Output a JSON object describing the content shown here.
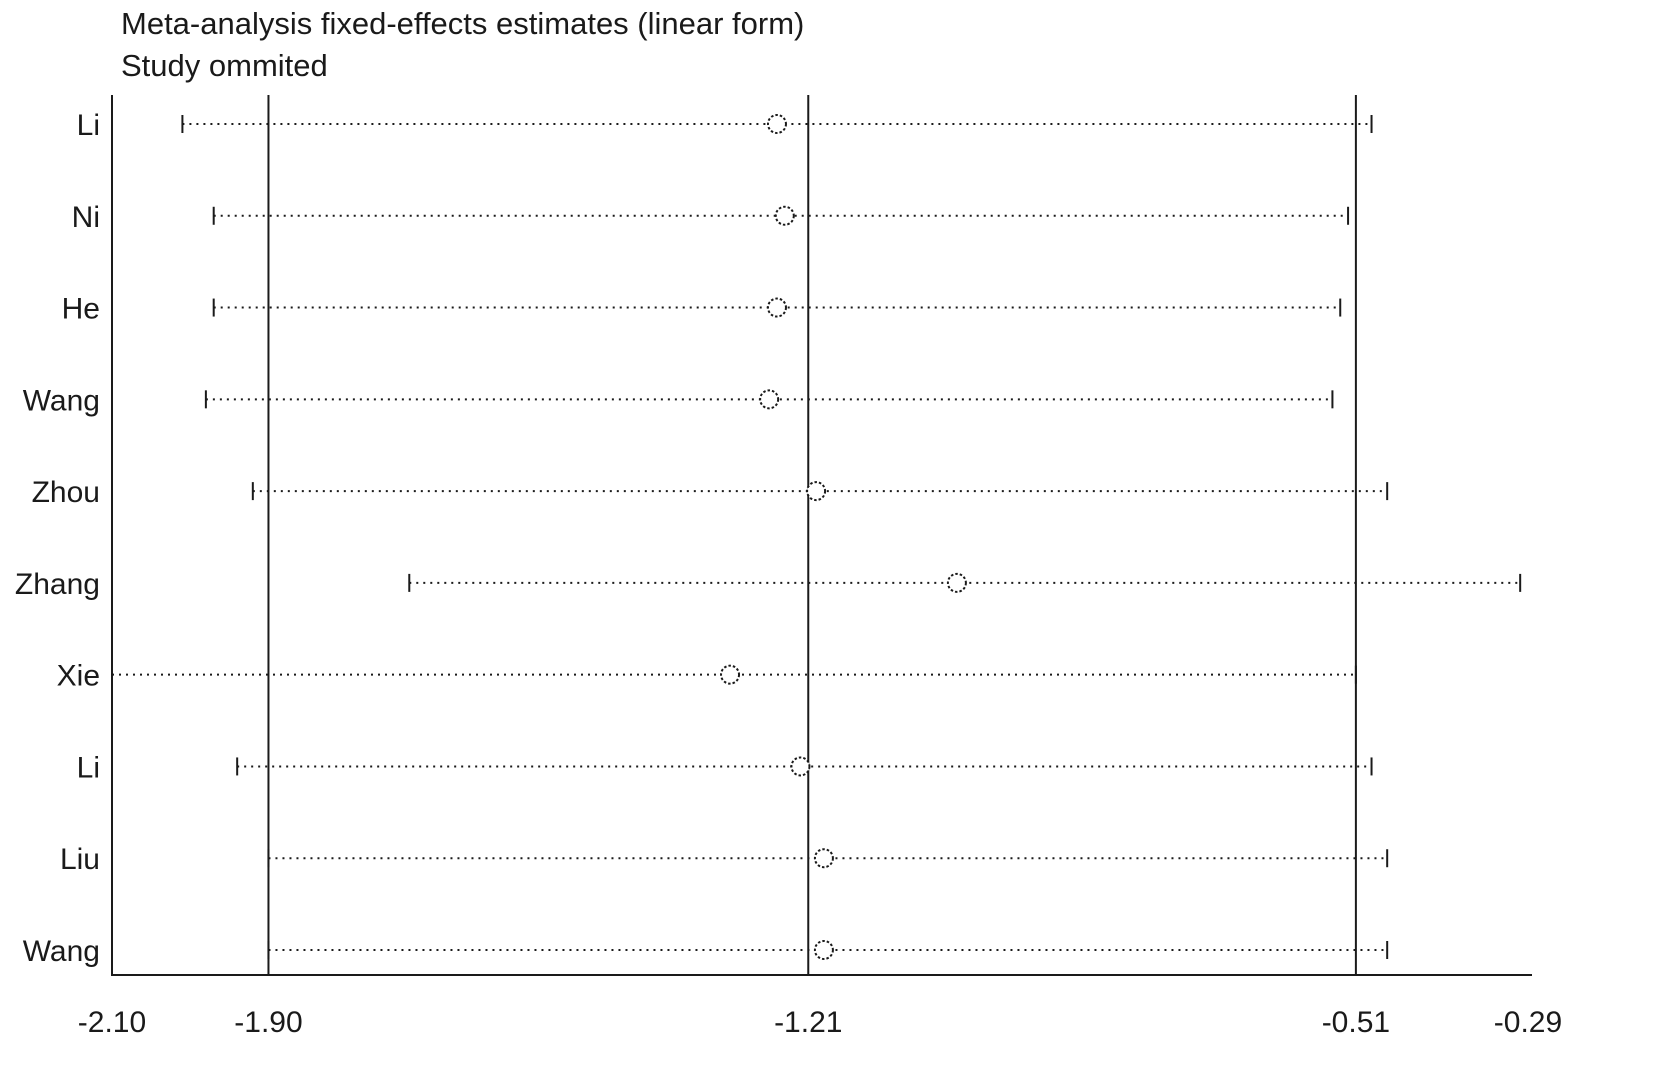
{
  "chart_data": {
    "type": "forest",
    "title": "Meta-analysis fixed-effects estimates (linear form)",
    "subtitle": "Study ommited",
    "x_axis": {
      "min": -2.1,
      "max": -0.29,
      "tick_values": [
        -2.1,
        -1.9,
        -1.21,
        -0.51,
        -0.29
      ],
      "tick_labels": [
        "-2.10",
        "-1.90",
        "-1.21",
        "-0.51",
        "-0.29"
      ]
    },
    "ref_lines": [
      -1.9,
      -1.21,
      -0.51
    ],
    "studies": [
      {
        "label": "Li",
        "lower": -2.01,
        "estimate": -1.25,
        "upper": -0.49,
        "lower_clipped": false
      },
      {
        "label": "Ni",
        "lower": -1.97,
        "estimate": -1.24,
        "upper": -0.52,
        "lower_clipped": false
      },
      {
        "label": "He",
        "lower": -1.97,
        "estimate": -1.25,
        "upper": -0.53,
        "lower_clipped": false
      },
      {
        "label": "Wang",
        "lower": -1.98,
        "estimate": -1.26,
        "upper": -0.54,
        "lower_clipped": false
      },
      {
        "label": "Zhou",
        "lower": -1.92,
        "estimate": -1.2,
        "upper": -0.47,
        "lower_clipped": false
      },
      {
        "label": "Zhang",
        "lower": -1.72,
        "estimate": -1.02,
        "upper": -0.3,
        "lower_clipped": false
      },
      {
        "label": "Xie",
        "lower": -2.1,
        "estimate": -1.31,
        "upper": -0.51,
        "lower_clipped": true
      },
      {
        "label": "Li",
        "lower": -1.94,
        "estimate": -1.22,
        "upper": -0.49,
        "lower_clipped": false
      },
      {
        "label": "Liu",
        "lower": -1.9,
        "estimate": -1.19,
        "upper": -0.47,
        "lower_clipped": false
      },
      {
        "label": "Wang",
        "lower": -1.9,
        "estimate": -1.19,
        "upper": -0.47,
        "lower_clipped": false
      }
    ],
    "marker": "open-circle",
    "line_style": "dotted",
    "legend": "none",
    "grid": "off",
    "colors": {
      "foreground": "#1a1a1a",
      "background": "#ffffff"
    }
  }
}
